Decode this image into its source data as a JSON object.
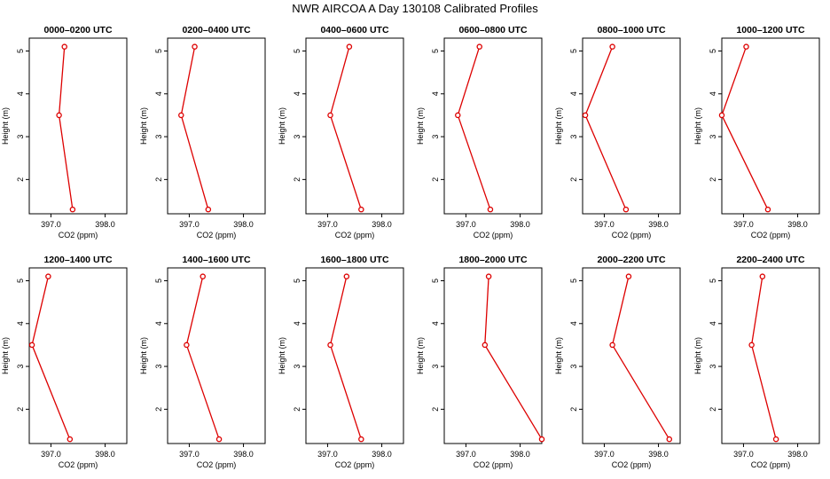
{
  "title": "NWR AIRCOA A  Day 130108  Calibrated Profiles",
  "colors": {
    "series": "#dd0000",
    "background": "#ffffff",
    "axis": "#000000"
  },
  "chart_data": [
    {
      "type": "line",
      "title": "0000–0200 UTC",
      "xlabel": "CO2 (ppm)",
      "ylabel": "Height (m)",
      "xlim": [
        396.6,
        398.4
      ],
      "ylim": [
        1.2,
        5.3
      ],
      "xticks": [
        397.0,
        398.0
      ],
      "xtick_labels": [
        "397.0",
        "398.0"
      ],
      "yticks": [
        2,
        3,
        4,
        5
      ],
      "ytick_labels": [
        "2",
        "3",
        "4",
        "5"
      ],
      "x": [
        397.4,
        397.15,
        397.25
      ],
      "y": [
        1.3,
        3.5,
        5.1
      ]
    },
    {
      "type": "line",
      "title": "0200–0400 UTC",
      "xlabel": "CO2 (ppm)",
      "ylabel": "Height (m)",
      "xlim": [
        396.6,
        398.4
      ],
      "ylim": [
        1.2,
        5.3
      ],
      "xticks": [
        397.0,
        398.0
      ],
      "xtick_labels": [
        "397.0",
        "398.0"
      ],
      "yticks": [
        2,
        3,
        4,
        5
      ],
      "ytick_labels": [
        "2",
        "3",
        "4",
        "5"
      ],
      "x": [
        397.35,
        396.85,
        397.1
      ],
      "y": [
        1.3,
        3.5,
        5.1
      ]
    },
    {
      "type": "line",
      "title": "0400–0600 UTC",
      "xlabel": "CO2 (ppm)",
      "ylabel": "Height (m)",
      "xlim": [
        396.6,
        398.4
      ],
      "ylim": [
        1.2,
        5.3
      ],
      "xticks": [
        397.0,
        398.0
      ],
      "xtick_labels": [
        "397.0",
        "398.0"
      ],
      "yticks": [
        2,
        3,
        4,
        5
      ],
      "ytick_labels": [
        "2",
        "3",
        "4",
        "5"
      ],
      "x": [
        397.62,
        397.05,
        397.4
      ],
      "y": [
        1.3,
        3.5,
        5.1
      ]
    },
    {
      "type": "line",
      "title": "0600–0800 UTC",
      "xlabel": "CO2 (ppm)",
      "ylabel": "Height (m)",
      "xlim": [
        396.6,
        398.4
      ],
      "ylim": [
        1.2,
        5.3
      ],
      "xticks": [
        397.0,
        398.0
      ],
      "xtick_labels": [
        "397.0",
        "398.0"
      ],
      "yticks": [
        2,
        3,
        4,
        5
      ],
      "ytick_labels": [
        "2",
        "3",
        "4",
        "5"
      ],
      "x": [
        397.45,
        396.85,
        397.25
      ],
      "y": [
        1.3,
        3.5,
        5.1
      ]
    },
    {
      "type": "line",
      "title": "0800–1000 UTC",
      "xlabel": "CO2 (ppm)",
      "ylabel": "Height (m)",
      "xlim": [
        396.6,
        398.4
      ],
      "ylim": [
        1.2,
        5.3
      ],
      "xticks": [
        397.0,
        398.0
      ],
      "xtick_labels": [
        "397.0",
        "398.0"
      ],
      "yticks": [
        2,
        3,
        4,
        5
      ],
      "ytick_labels": [
        "2",
        "3",
        "4",
        "5"
      ],
      "x": [
        397.4,
        396.65,
        397.15
      ],
      "y": [
        1.3,
        3.5,
        5.1
      ]
    },
    {
      "type": "line",
      "title": "1000–1200 UTC",
      "xlabel": "CO2 (ppm)",
      "ylabel": "Height (m)",
      "xlim": [
        396.6,
        398.4
      ],
      "ylim": [
        1.2,
        5.3
      ],
      "xticks": [
        397.0,
        398.0
      ],
      "xtick_labels": [
        "397.0",
        "398.0"
      ],
      "yticks": [
        2,
        3,
        4,
        5
      ],
      "ytick_labels": [
        "2",
        "3",
        "4",
        "5"
      ],
      "x": [
        397.45,
        396.6,
        397.05
      ],
      "y": [
        1.3,
        3.5,
        5.1
      ]
    },
    {
      "type": "line",
      "title": "1200–1400 UTC",
      "xlabel": "CO2 (ppm)",
      "ylabel": "Height (m)",
      "xlim": [
        396.6,
        398.4
      ],
      "ylim": [
        1.2,
        5.3
      ],
      "xticks": [
        397.0,
        398.0
      ],
      "xtick_labels": [
        "397.0",
        "398.0"
      ],
      "yticks": [
        2,
        3,
        4,
        5
      ],
      "ytick_labels": [
        "2",
        "3",
        "4",
        "5"
      ],
      "x": [
        397.35,
        396.65,
        396.95
      ],
      "y": [
        1.3,
        3.5,
        5.1
      ]
    },
    {
      "type": "line",
      "title": "1400–1600 UTC",
      "xlabel": "CO2 (ppm)",
      "ylabel": "Height (m)",
      "xlim": [
        396.6,
        398.4
      ],
      "ylim": [
        1.2,
        5.3
      ],
      "xticks": [
        397.0,
        398.0
      ],
      "xtick_labels": [
        "397.0",
        "398.0"
      ],
      "yticks": [
        2,
        3,
        4,
        5
      ],
      "ytick_labels": [
        "2",
        "3",
        "4",
        "5"
      ],
      "x": [
        397.55,
        396.95,
        397.25
      ],
      "y": [
        1.3,
        3.5,
        5.1
      ]
    },
    {
      "type": "line",
      "title": "1600–1800 UTC",
      "xlabel": "CO2 (ppm)",
      "ylabel": "Height (m)",
      "xlim": [
        396.6,
        398.4
      ],
      "ylim": [
        1.2,
        5.3
      ],
      "xticks": [
        397.0,
        398.0
      ],
      "xtick_labels": [
        "397.0",
        "398.0"
      ],
      "yticks": [
        2,
        3,
        4,
        5
      ],
      "ytick_labels": [
        "2",
        "3",
        "4",
        "5"
      ],
      "x": [
        397.62,
        397.05,
        397.35
      ],
      "y": [
        1.3,
        3.5,
        5.1
      ]
    },
    {
      "type": "line",
      "title": "1800–2000 UTC",
      "xlabel": "CO2 (ppm)",
      "ylabel": "Height (m)",
      "xlim": [
        396.6,
        398.4
      ],
      "ylim": [
        1.2,
        5.3
      ],
      "xticks": [
        397.0,
        398.0
      ],
      "xtick_labels": [
        "397.0",
        "398.0"
      ],
      "yticks": [
        2,
        3,
        4,
        5
      ],
      "ytick_labels": [
        "2",
        "3",
        "4",
        "5"
      ],
      "x": [
        398.4,
        397.35,
        397.42
      ],
      "y": [
        1.3,
        3.5,
        5.1
      ]
    },
    {
      "type": "line",
      "title": "2000–2200 UTC",
      "xlabel": "CO2 (ppm)",
      "ylabel": "Height (m)",
      "xlim": [
        396.6,
        398.4
      ],
      "ylim": [
        1.2,
        5.3
      ],
      "xticks": [
        397.0,
        398.0
      ],
      "xtick_labels": [
        "397.0",
        "398.0"
      ],
      "yticks": [
        2,
        3,
        4,
        5
      ],
      "ytick_labels": [
        "2",
        "3",
        "4",
        "5"
      ],
      "x": [
        398.2,
        397.15,
        397.45
      ],
      "y": [
        1.3,
        3.5,
        5.1
      ]
    },
    {
      "type": "line",
      "title": "2200–2400 UTC",
      "xlabel": "CO2 (ppm)",
      "ylabel": "Height (m)",
      "xlim": [
        396.6,
        398.4
      ],
      "ylim": [
        1.2,
        5.3
      ],
      "xticks": [
        397.0,
        398.0
      ],
      "xtick_labels": [
        "397.0",
        "398.0"
      ],
      "yticks": [
        2,
        3,
        4,
        5
      ],
      "ytick_labels": [
        "2",
        "3",
        "4",
        "5"
      ],
      "x": [
        397.6,
        397.15,
        397.35
      ],
      "y": [
        1.3,
        3.5,
        5.1
      ]
    }
  ]
}
